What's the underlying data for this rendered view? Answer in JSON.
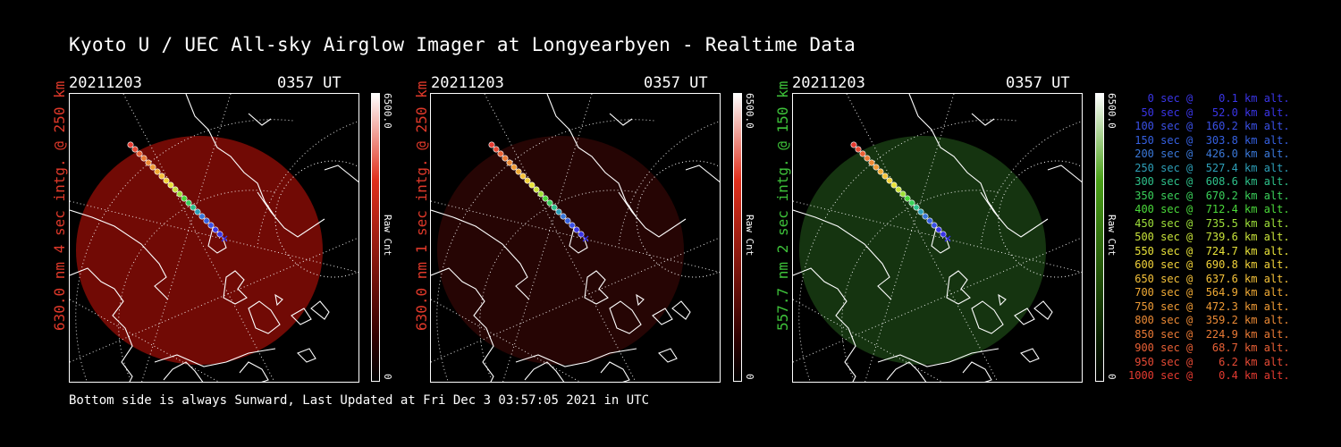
{
  "title": "Kyoto U / UEC All-sky Airglow Imager at Longyearbyen - Realtime Data",
  "footer": "Bottom side is always Sunward, Last Updated at Fri Dec  3 03:57:05 2021 in UTC",
  "panels": [
    {
      "date": "20211203",
      "time": "0357 UT",
      "side_label": "630.0 nm 4 sec intg. @ 250 km",
      "label_color": "#e0392a",
      "cbar_max": "6500.0",
      "cbar_min": "0",
      "cbar_unit": "Raw Cnt",
      "cbar_top_color": "#ffffff",
      "cbar_mid_color": "#e0301c",
      "cbar_low_color": "#300000",
      "glow_color": "#7d0b06",
      "glow_opacity": 0.9
    },
    {
      "date": "20211203",
      "time": "0357 UT",
      "side_label": "630.0 nm 1 sec intg. @ 250 km",
      "label_color": "#e0392a",
      "cbar_max": "6500.0",
      "cbar_min": "0",
      "cbar_unit": "Raw Cnt",
      "cbar_top_color": "#ffffff",
      "cbar_mid_color": "#e0301c",
      "cbar_low_color": "#300000",
      "glow_color": "#2a0604",
      "glow_opacity": 0.9
    },
    {
      "date": "20211203",
      "time": "0357 UT",
      "side_label": "557.7 nm 2 sec intg. @ 150 km",
      "label_color": "#3ec23a",
      "cbar_max": "6500.0",
      "cbar_min": "0",
      "cbar_unit": "Raw Cnt",
      "cbar_top_color": "#ffffff",
      "cbar_mid_color": "#4aa018",
      "cbar_low_color": "#0a2000",
      "glow_color": "#173a12",
      "glow_opacity": 0.9
    }
  ],
  "legend": [
    {
      "text": "   0 sec @    0.1 km alt.",
      "color": "#3a35e6"
    },
    {
      "text": "  50 sec @   52.0 km alt.",
      "color": "#3a35e6"
    },
    {
      "text": " 100 sec @  160.2 km alt.",
      "color": "#3a50e6"
    },
    {
      "text": " 150 sec @  303.8 km alt.",
      "color": "#3560e0"
    },
    {
      "text": " 200 sec @  426.0 km alt.",
      "color": "#3a78d8"
    },
    {
      "text": " 250 sec @  527.4 km alt.",
      "color": "#2d9fb8"
    },
    {
      "text": " 300 sec @  608.6 km alt.",
      "color": "#2ec08a"
    },
    {
      "text": " 350 sec @  670.2 km alt.",
      "color": "#3ad05a"
    },
    {
      "text": " 400 sec @  712.4 km alt.",
      "color": "#4ad83a"
    },
    {
      "text": " 450 sec @  735.5 km alt.",
      "color": "#9ee03a"
    },
    {
      "text": " 500 sec @  739.6 km alt.",
      "color": "#c8e23a"
    },
    {
      "text": " 550 sec @  724.7 km alt.",
      "color": "#e8e23a"
    },
    {
      "text": " 600 sec @  690.8 km alt.",
      "color": "#f2d23a"
    },
    {
      "text": " 650 sec @  637.6 km alt.",
      "color": "#f5c23a"
    },
    {
      "text": " 700 sec @  564.9 km alt.",
      "color": "#f0aa35"
    },
    {
      "text": " 750 sec @  472.3 km alt.",
      "color": "#ee9a35"
    },
    {
      "text": " 800 sec @  359.2 km alt.",
      "color": "#ec8a35"
    },
    {
      "text": " 850 sec @  224.9 km alt.",
      "color": "#ea7a35"
    },
    {
      "text": " 900 sec @   68.7 km alt.",
      "color": "#e86035"
    },
    {
      "text": " 950 sec @    6.2 km alt.",
      "color": "#e64a35"
    },
    {
      "text": "1000 sec @    0.4 km alt.",
      "color": "#e43a30"
    }
  ]
}
